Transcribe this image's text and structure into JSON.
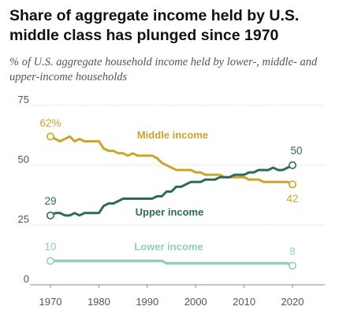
{
  "chart_data": {
    "type": "line",
    "title": "Share of aggregate income held by U.S. middle class has plunged since 1970",
    "subtitle": "% of U.S. aggregate household income held by lower-, middle- and upper-income households",
    "xlim": [
      1970,
      2020
    ],
    "ylim": [
      0,
      75
    ],
    "xticks": [
      1970,
      1980,
      1990,
      2000,
      2010,
      2020
    ],
    "yticks": [
      0,
      25,
      50,
      75
    ],
    "grid": true,
    "legend": "labels on lines",
    "series": [
      {
        "name": "Middle income",
        "color": "#cba42a",
        "x": [
          1970,
          1971,
          1972,
          1973,
          1974,
          1975,
          1976,
          1977,
          1978,
          1979,
          1980,
          1981,
          1982,
          1983,
          1984,
          1985,
          1986,
          1987,
          1988,
          1989,
          1990,
          1991,
          1992,
          1993,
          1994,
          1995,
          1996,
          1997,
          1998,
          1999,
          2000,
          2001,
          2002,
          2003,
          2004,
          2005,
          2006,
          2007,
          2008,
          2009,
          2010,
          2011,
          2012,
          2013,
          2014,
          2015,
          2016,
          2017,
          2018,
          2019,
          2020
        ],
        "values": [
          62,
          61,
          60,
          61,
          62,
          60,
          61,
          60,
          60,
          60,
          60,
          57,
          56,
          56,
          55,
          55,
          54,
          55,
          54,
          54,
          54,
          54,
          53,
          51,
          50,
          49,
          48,
          48,
          48,
          48,
          47,
          47,
          46,
          46,
          46,
          46,
          45,
          45,
          45,
          45,
          45,
          44,
          44,
          44,
          43,
          43,
          43,
          43,
          43,
          43,
          42
        ],
        "start_label": "62%",
        "end_label": "42"
      },
      {
        "name": "Upper income",
        "color": "#2e6b53",
        "x": [
          1970,
          1971,
          1972,
          1973,
          1974,
          1975,
          1976,
          1977,
          1978,
          1979,
          1980,
          1981,
          1982,
          1983,
          1984,
          1985,
          1986,
          1987,
          1988,
          1989,
          1990,
          1991,
          1992,
          1993,
          1994,
          1995,
          1996,
          1997,
          1998,
          1999,
          2000,
          2001,
          2002,
          2003,
          2004,
          2005,
          2006,
          2007,
          2008,
          2009,
          2010,
          2011,
          2012,
          2013,
          2014,
          2015,
          2016,
          2017,
          2018,
          2019,
          2020
        ],
        "values": [
          29,
          30,
          30,
          29,
          29,
          30,
          29,
          30,
          30,
          30,
          30,
          33,
          34,
          34,
          35,
          36,
          36,
          36,
          36,
          36,
          36,
          36,
          37,
          37,
          39,
          39,
          41,
          41,
          42,
          43,
          43,
          43,
          44,
          44,
          44,
          45,
          45,
          45,
          46,
          46,
          46,
          47,
          47,
          48,
          48,
          48,
          49,
          48,
          48,
          49,
          50
        ],
        "start_label": "29",
        "end_label": "50"
      },
      {
        "name": "Lower income",
        "color": "#8fd0bd",
        "x": [
          1970,
          1975,
          1980,
          1985,
          1990,
          1993,
          1994,
          2000,
          2005,
          2010,
          2015,
          2018,
          2019,
          2020
        ],
        "values": [
          10,
          10,
          10,
          10,
          10,
          10,
          9,
          9,
          9,
          9,
          9,
          9,
          9,
          8
        ],
        "start_label": "10",
        "end_label": "8"
      }
    ]
  }
}
